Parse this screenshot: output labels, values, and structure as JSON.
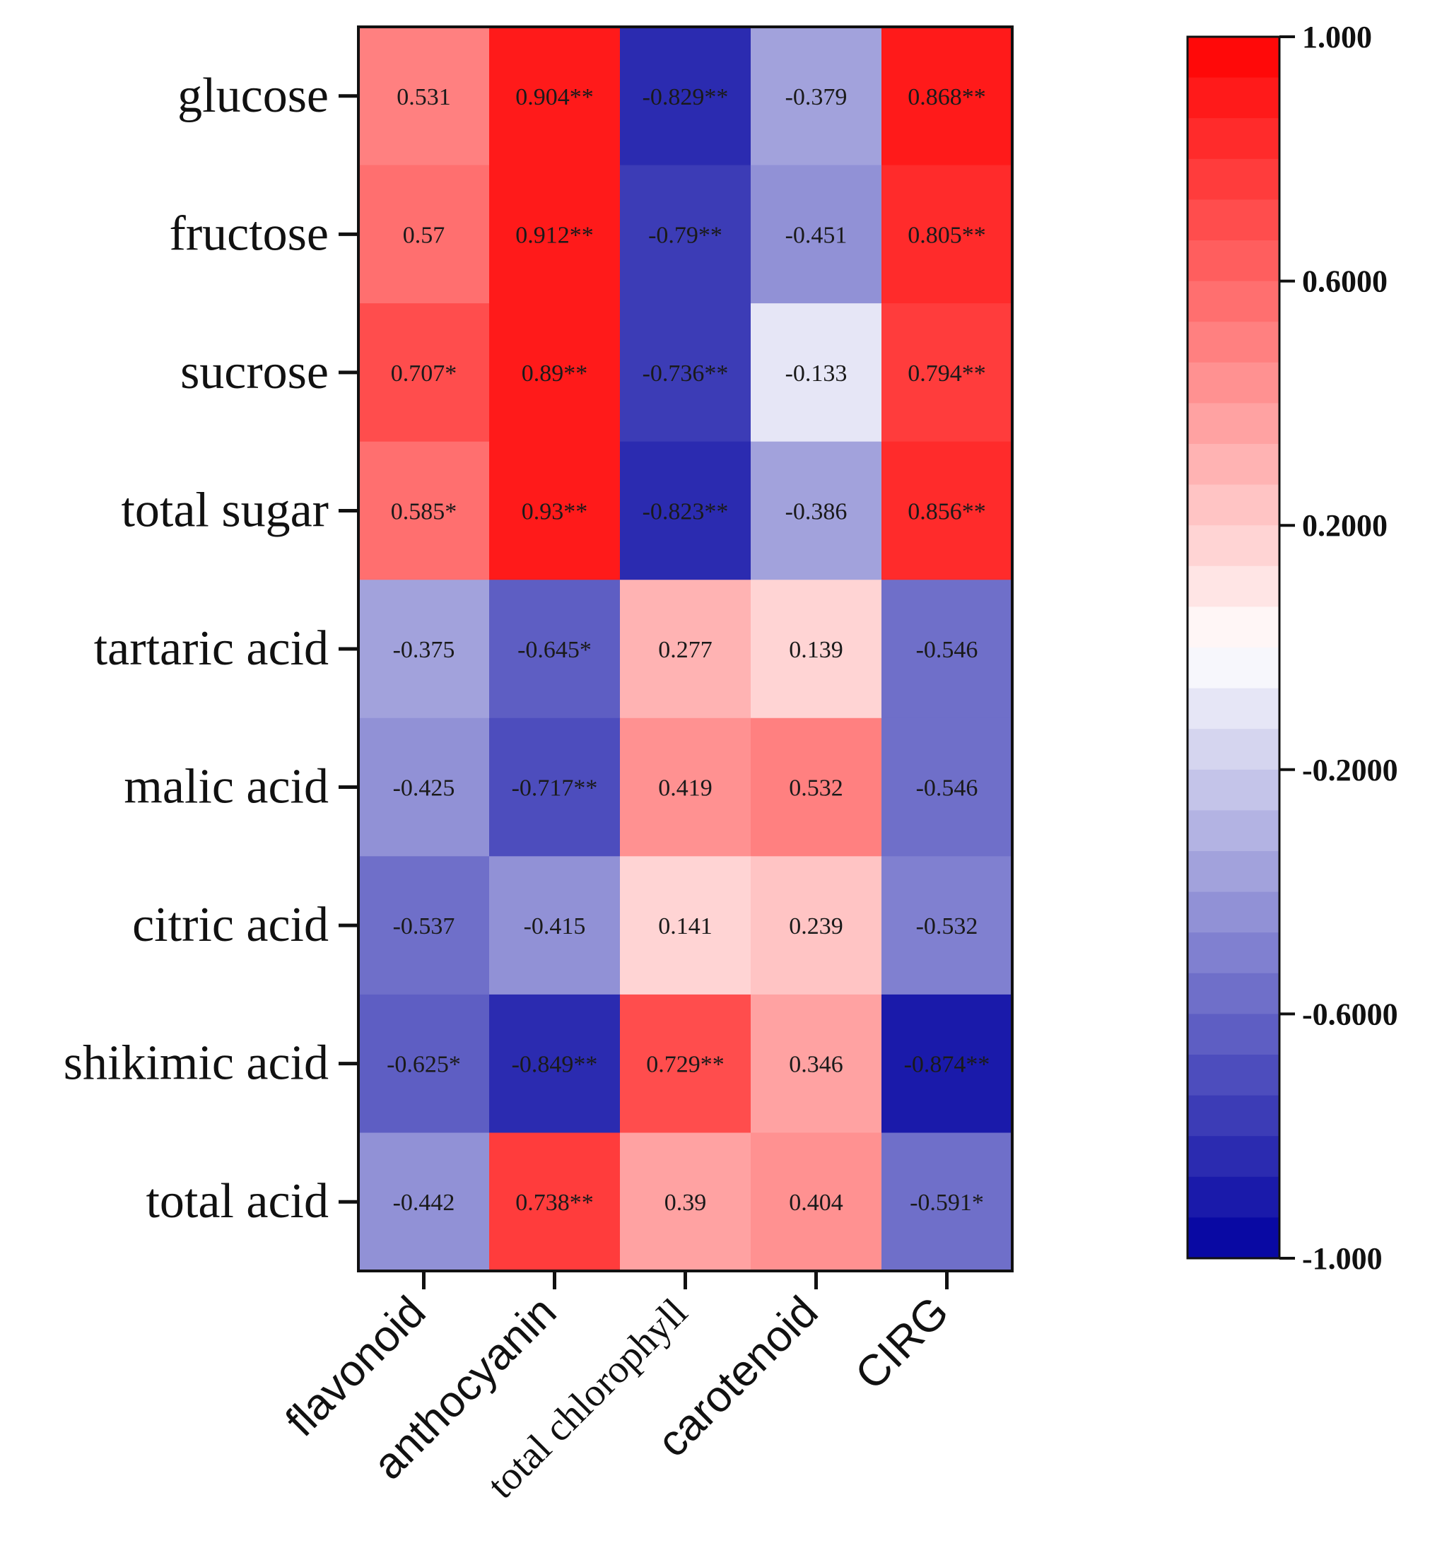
{
  "chart_data": {
    "type": "heatmap",
    "title": "",
    "xlabel": "",
    "ylabel": "",
    "rows": [
      "glucose",
      "fructose",
      "sucrose",
      "total sugar",
      "tartaric acid",
      "malic acid",
      "citric acid",
      "shikimic acid",
      "total acid"
    ],
    "columns": [
      "flavonoid",
      "anthocyanin",
      "total chlorophyll",
      "carotenoid",
      "CIRG"
    ],
    "values": [
      [
        0.531,
        0.904,
        -0.829,
        -0.379,
        0.868
      ],
      [
        0.57,
        0.912,
        -0.79,
        -0.451,
        0.805
      ],
      [
        0.707,
        0.89,
        -0.736,
        -0.133,
        0.794
      ],
      [
        0.585,
        0.93,
        -0.823,
        -0.386,
        0.856
      ],
      [
        -0.375,
        -0.645,
        0.277,
        0.139,
        -0.546
      ],
      [
        -0.425,
        -0.717,
        0.419,
        0.532,
        -0.546
      ],
      [
        -0.537,
        -0.415,
        0.141,
        0.239,
        -0.532
      ],
      [
        -0.625,
        -0.849,
        0.729,
        0.346,
        -0.874
      ],
      [
        -0.442,
        0.738,
        0.39,
        0.404,
        -0.591
      ]
    ],
    "cell_labels": [
      [
        "0.531",
        "0.904**",
        "-0.829**",
        "-0.379",
        "0.868**"
      ],
      [
        "0.57",
        "0.912**",
        "-0.79**",
        "-0.451",
        "0.805**"
      ],
      [
        "0.707*",
        "0.89**",
        "-0.736**",
        "-0.133",
        "0.794**"
      ],
      [
        "0.585*",
        "0.93**",
        "-0.823**",
        "-0.386",
        "0.856**"
      ],
      [
        "-0.375",
        "-0.645*",
        "0.277",
        "0.139",
        "-0.546"
      ],
      [
        "-0.425",
        "-0.717**",
        "0.419",
        "0.532",
        "-0.546"
      ],
      [
        "-0.537",
        "-0.415",
        "0.141",
        "0.239",
        "-0.532"
      ],
      [
        "-0.625*",
        "-0.849**",
        "0.729**",
        "0.346",
        "-0.874**"
      ],
      [
        "-0.442",
        "0.738**",
        "0.39",
        "0.404",
        "-0.591*"
      ]
    ],
    "color_scale": {
      "min": -1.0,
      "max": 1.0,
      "low_color": "#0000a0",
      "mid_color": "#ffffff",
      "high_color": "#ff0000",
      "steps": 30,
      "tick_labels": [
        "1.000",
        "0.6000",
        "0.2000",
        "-0.2000",
        "-0.6000",
        "-1.000"
      ],
      "tick_values": [
        1.0,
        0.6,
        0.2,
        -0.2,
        -0.6,
        -1.0
      ]
    },
    "legend_position": "right"
  }
}
